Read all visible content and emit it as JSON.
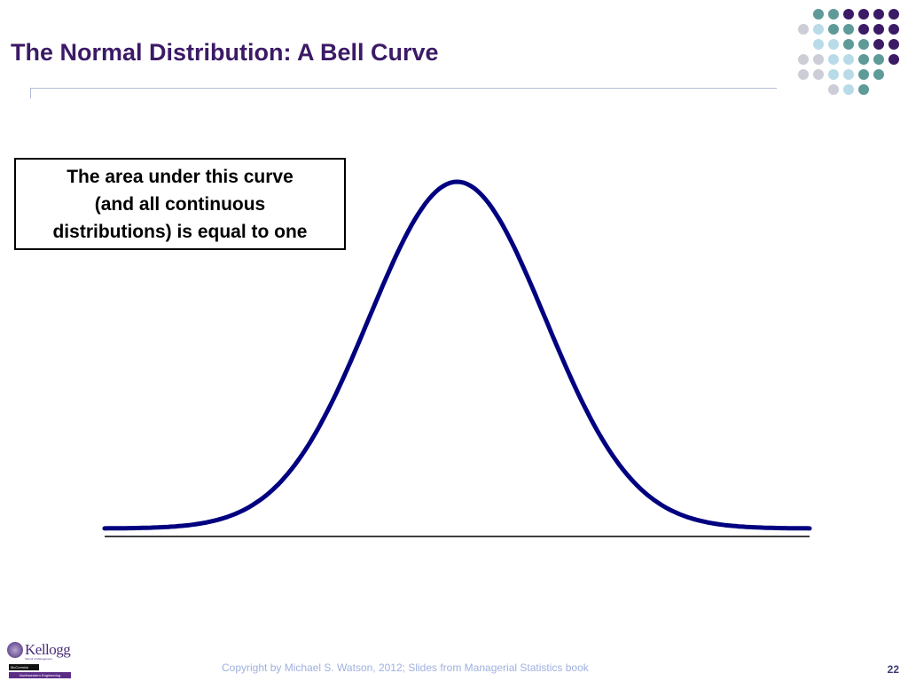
{
  "slide": {
    "title": "The Normal Distribution: A Bell Curve",
    "callout_text": "The area under this curve\n(and all continuous\ndistributions) is equal to one",
    "footer_copyright": "Copyright by Michael S. Watson, 2012;  Slides from Managerial Statistics book",
    "page_number": "22"
  },
  "logo": {
    "kellogg": "Kellogg",
    "kellogg_sub": "School of Management",
    "mccormick": "McCormick",
    "northwestern": "Northwestern Engineering"
  },
  "decor": {
    "dot_colors": {
      "purple": "#3b1a66",
      "teal": "#5e9a98",
      "light_blue": "#b9dbe8",
      "grey": "#cdcdd8"
    },
    "dot_rows": [
      [
        "",
        "",
        "teal",
        "teal",
        "purple",
        "purple",
        "purple",
        "purple"
      ],
      [
        "",
        "grey",
        "light_blue",
        "teal",
        "teal",
        "purple",
        "purple",
        "purple"
      ],
      [
        "",
        "",
        "light_blue",
        "light_blue",
        "teal",
        "teal",
        "purple",
        "purple"
      ],
      [
        "",
        "grey",
        "grey",
        "light_blue",
        "light_blue",
        "teal",
        "teal",
        "purple"
      ],
      [
        "",
        "grey",
        "grey",
        "light_blue",
        "light_blue",
        "teal",
        "teal",
        ""
      ],
      [
        "",
        "",
        "",
        "grey",
        "light_blue",
        "teal",
        "",
        ""
      ]
    ]
  },
  "chart_data": {
    "type": "line",
    "title": "",
    "xlabel": "",
    "ylabel": "",
    "series": [
      {
        "distribution": "normal",
        "mean": 0,
        "std_dev": 1,
        "x_range": [
          -4,
          4
        ],
        "color": "#000080"
      }
    ],
    "axis_color": "#000000",
    "grid": false,
    "legend": "none"
  }
}
